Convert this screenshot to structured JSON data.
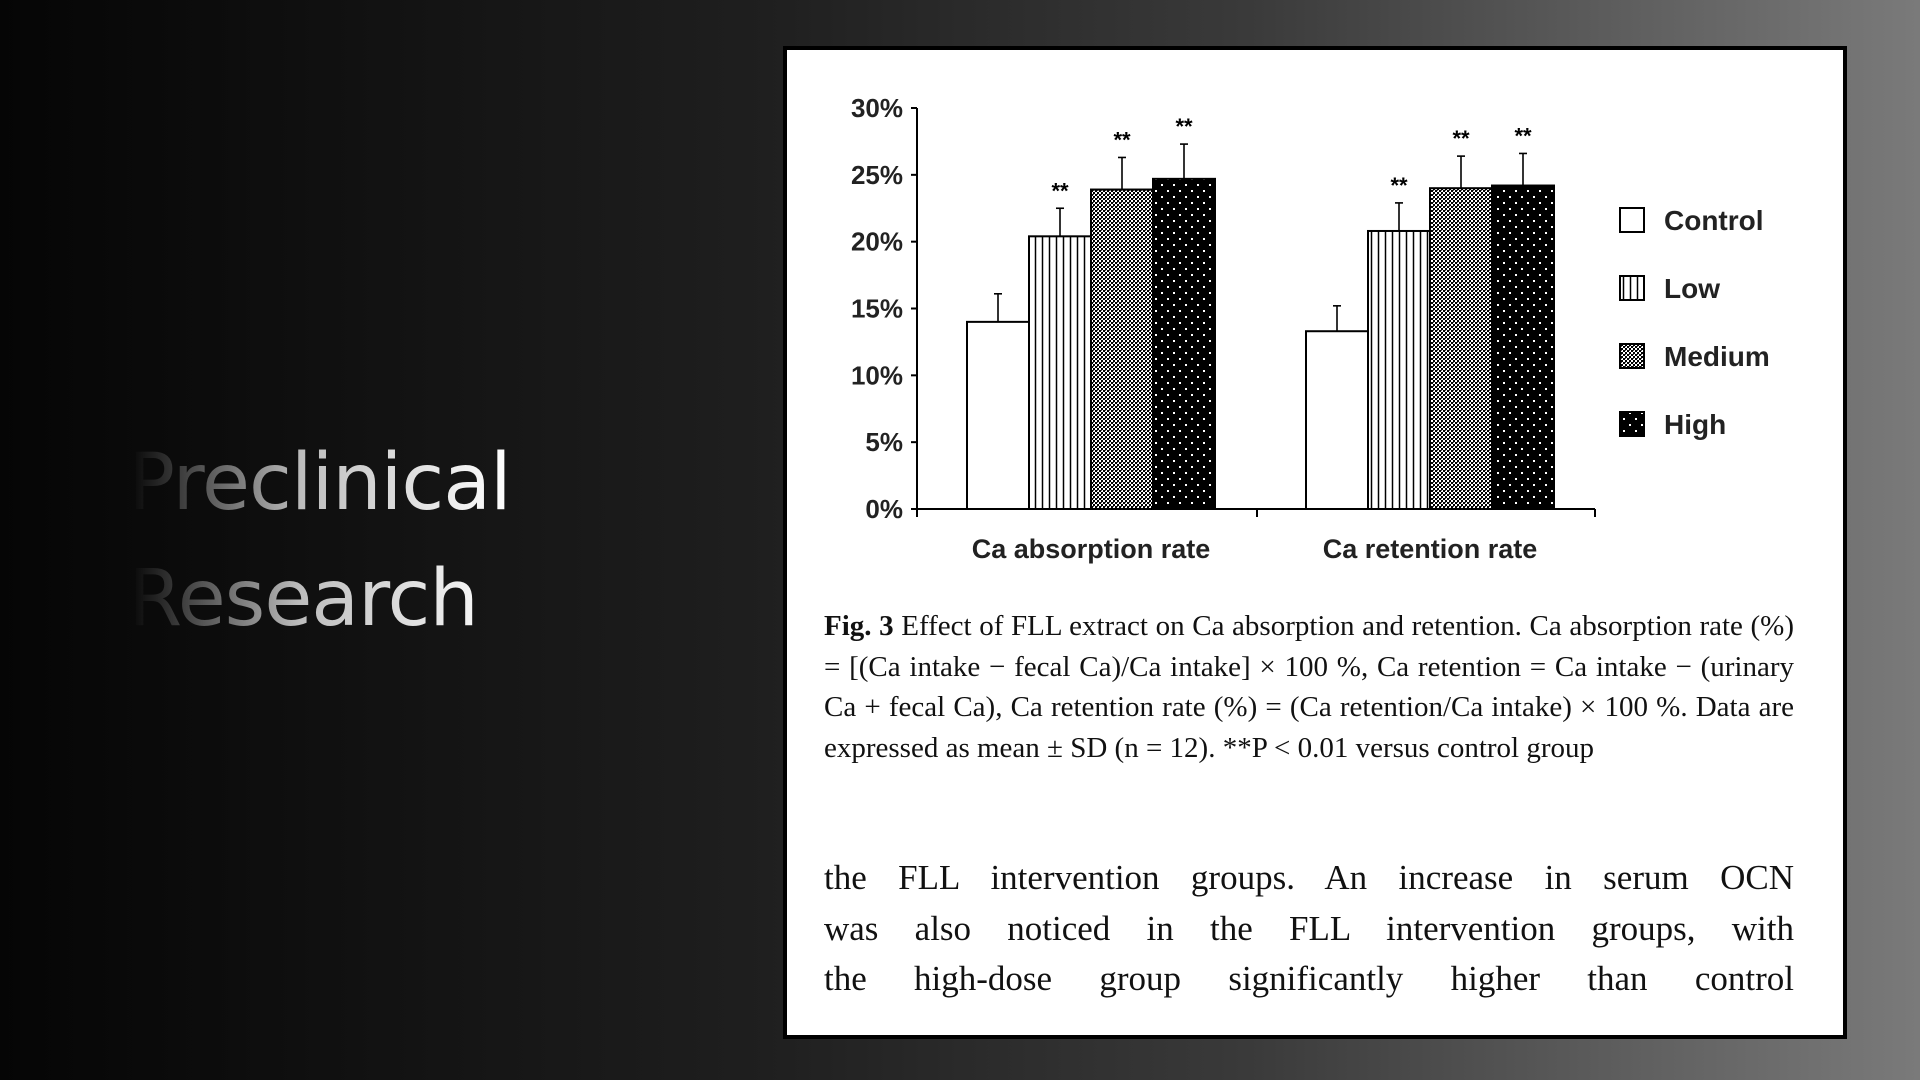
{
  "slide": {
    "title_lines": [
      "Preclinical",
      "Research"
    ]
  },
  "chart_data": {
    "type": "bar",
    "categories": [
      "Ca absorption rate",
      "Ca retention rate"
    ],
    "series": [
      {
        "name": "Control",
        "values": [
          14.0,
          13.3
        ],
        "sd": [
          2.1,
          1.9
        ],
        "significance": [
          "",
          ""
        ]
      },
      {
        "name": "Low",
        "values": [
          20.4,
          20.8
        ],
        "sd": [
          2.1,
          2.1
        ],
        "significance": [
          "**",
          "**"
        ]
      },
      {
        "name": "Medium",
        "values": [
          23.9,
          24.0
        ],
        "sd": [
          2.4,
          2.4
        ],
        "significance": [
          "**",
          "**"
        ]
      },
      {
        "name": "High",
        "values": [
          24.7,
          24.2
        ],
        "sd": [
          2.6,
          2.4
        ],
        "significance": [
          "**",
          "**"
        ]
      }
    ],
    "ylim": [
      0,
      30
    ],
    "yticks": [
      "0%",
      "5%",
      "10%",
      "15%",
      "20%",
      "25%",
      "30%"
    ],
    "ytick_values": [
      0,
      5,
      10,
      15,
      20,
      25,
      30
    ],
    "legend_position": "right",
    "grid": false
  },
  "caption": {
    "label": "Fig. 3",
    "text": "Effect of FLL extract on Ca absorption and retention. Ca absorption rate (%) = [(Ca intake − fecal Ca)/Ca intake] × 100 %, Ca retention = Ca intake − (urinary Ca + fecal Ca), Ca retention rate (%) = (Ca retention/Ca intake) × 100 %. Data are expressed as mean ± SD (n = 12). **P < 0.01 versus control group"
  },
  "body_text": {
    "lines": [
      "the FLL intervention groups. An increase in serum OCN",
      "was also noticed in the FLL intervention groups, with",
      "the high-dose group significantly higher than control"
    ]
  },
  "colors": {
    "card_background": "#ffffff",
    "ink": "#000000"
  }
}
